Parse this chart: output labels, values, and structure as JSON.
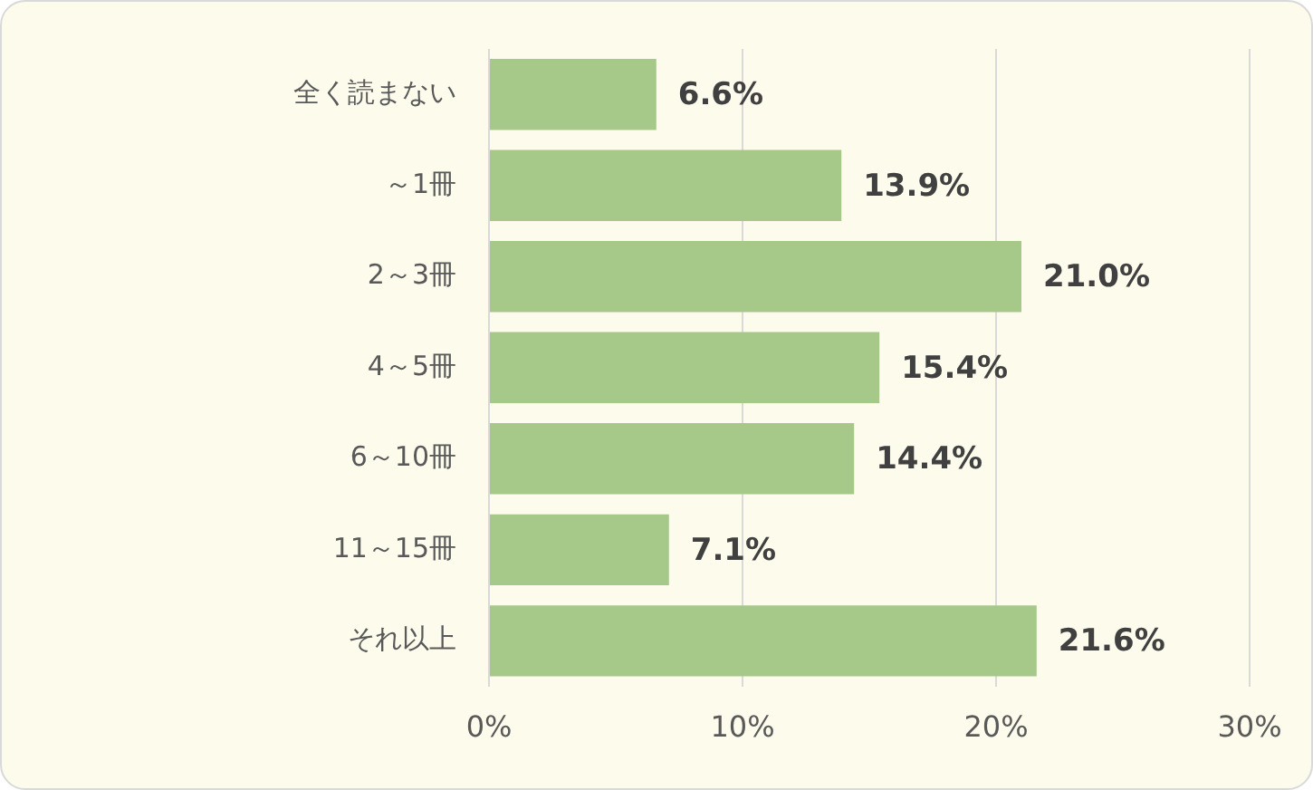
{
  "chart_data": {
    "type": "bar",
    "orientation": "horizontal",
    "categories": [
      "全く読まない",
      "～1冊",
      "2～3冊",
      "4～5冊",
      "6～10冊",
      "11～15冊",
      "それ以上"
    ],
    "values": [
      6.6,
      13.9,
      21.0,
      15.4,
      14.4,
      7.1,
      21.6
    ],
    "value_labels": [
      "6.6%",
      "13.9%",
      "21.0%",
      "15.4%",
      "14.4%",
      "7.1%",
      "21.6%"
    ],
    "color": "#a6c98a",
    "xlim": [
      0,
      30
    ],
    "xticks": [
      {
        "value": 0,
        "label": "0%"
      },
      {
        "value": 10,
        "label": "10%"
      },
      {
        "value": 20,
        "label": "20%"
      },
      {
        "value": 30,
        "label": "30%"
      }
    ],
    "grid": "x",
    "legend": false
  }
}
